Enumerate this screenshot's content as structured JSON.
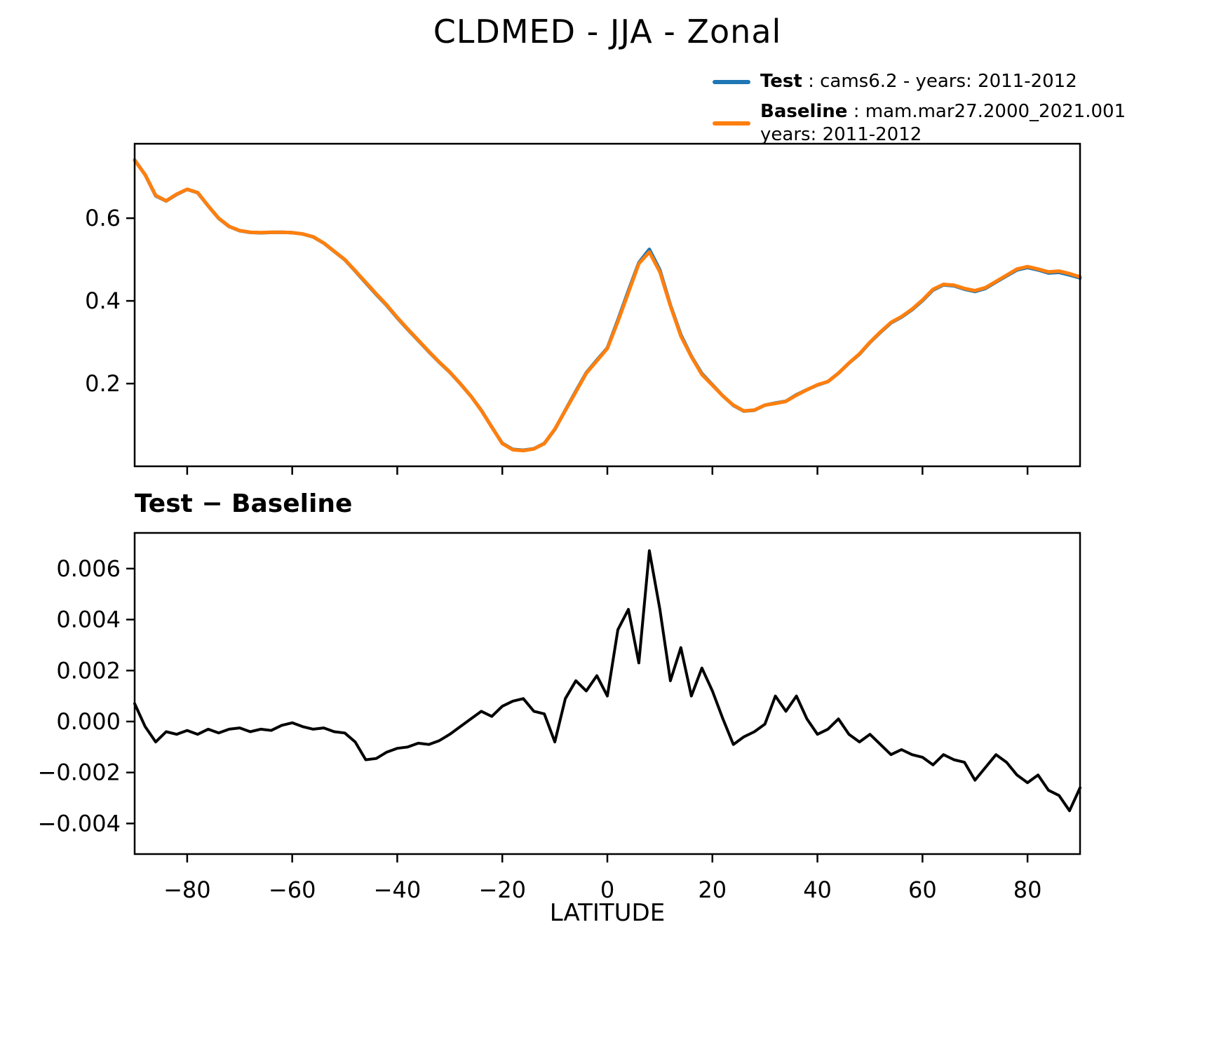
{
  "figure": {
    "title": "CLDMED - JJA - Zonal",
    "background": "#ffffff"
  },
  "legend": {
    "items": [
      {
        "name": "Test",
        "rest": " : cams6.2 - years: 2011-2012",
        "color": "#1f77b4"
      },
      {
        "name": "Baseline",
        "rest": " : mam.mar27.2000_2021.001\nyears: 2011-2012",
        "color": "#ff7f0e"
      }
    ]
  },
  "chart_data": [
    {
      "type": "line",
      "title": "CLDMED - JJA - Zonal",
      "xlabel": "",
      "ylabel": "",
      "xlim": [
        -90,
        90
      ],
      "ylim": [
        0,
        0.78
      ],
      "grid": false,
      "legend_position": "upper right outside",
      "xticks": {
        "values": [
          -80,
          -60,
          -40,
          -20,
          0,
          20,
          40,
          60,
          80
        ],
        "labels": []
      },
      "yticks": {
        "values": [
          0.2,
          0.4,
          0.6
        ],
        "labels": [
          "0.2",
          "0.4",
          "0.6"
        ]
      },
      "x": [
        -90,
        -88,
        -86,
        -84,
        -82,
        -80,
        -78,
        -76,
        -74,
        -72,
        -70,
        -68,
        -66,
        -64,
        -62,
        -60,
        -58,
        -56,
        -54,
        -52,
        -50,
        -48,
        -46,
        -44,
        -42,
        -40,
        -38,
        -36,
        -34,
        -32,
        -30,
        -28,
        -26,
        -24,
        -22,
        -20,
        -18,
        -16,
        -14,
        -12,
        -10,
        -8,
        -6,
        -4,
        -2,
        0,
        2,
        4,
        6,
        8,
        10,
        12,
        14,
        16,
        18,
        20,
        22,
        24,
        26,
        28,
        30,
        32,
        34,
        36,
        38,
        40,
        42,
        44,
        46,
        48,
        50,
        52,
        54,
        56,
        58,
        60,
        62,
        64,
        66,
        68,
        70,
        72,
        74,
        76,
        78,
        80,
        82,
        84,
        86,
        88,
        90
      ],
      "series": [
        {
          "name": "Test",
          "slug": "test",
          "color": "#1f77b4",
          "values": [
            0.7407,
            0.7048,
            0.6542,
            0.6416,
            0.6575,
            0.6697,
            0.6615,
            0.6297,
            0.5996,
            0.5797,
            0.5698,
            0.5656,
            0.5647,
            0.5657,
            0.5659,
            0.565,
            0.5618,
            0.5547,
            0.5398,
            0.5196,
            0.4996,
            0.4722,
            0.4435,
            0.4156,
            0.3888,
            0.359,
            0.331,
            0.3042,
            0.2771,
            0.2513,
            0.2275,
            0.1998,
            0.1701,
            0.1354,
            0.0952,
            0.0556,
            0.0408,
            0.0389,
            0.0424,
            0.0553,
            0.0892,
            0.1359,
            0.1816,
            0.2262,
            0.2568,
            0.286,
            0.3536,
            0.4244,
            0.4923,
            0.5247,
            0.4744,
            0.3896,
            0.3179,
            0.266,
            0.2241,
            0.1972,
            0.1701,
            0.1471,
            0.1334,
            0.1356,
            0.1479,
            0.153,
            0.1574,
            0.173,
            0.1851,
            0.1965,
            0.2047,
            0.2251,
            0.2495,
            0.2712,
            0.2995,
            0.3241,
            0.3467,
            0.3609,
            0.3787,
            0.4006,
            0.4263,
            0.4387,
            0.4365,
            0.4284,
            0.4227,
            0.4302,
            0.4457,
            0.4604,
            0.4749,
            0.4806,
            0.4749,
            0.4673,
            0.4691,
            0.4627,
            0.4554
          ]
        },
        {
          "name": "Baseline",
          "slug": "baseline",
          "color": "#ff7f0e",
          "values": [
            0.74,
            0.705,
            0.655,
            0.642,
            0.658,
            0.67,
            0.662,
            0.63,
            0.6,
            0.58,
            0.57,
            0.566,
            0.565,
            0.566,
            0.566,
            0.565,
            0.562,
            0.555,
            0.54,
            0.52,
            0.5,
            0.473,
            0.445,
            0.417,
            0.39,
            0.36,
            0.332,
            0.305,
            0.278,
            0.252,
            0.228,
            0.2,
            0.17,
            0.135,
            0.095,
            0.055,
            0.04,
            0.038,
            0.042,
            0.055,
            0.09,
            0.135,
            0.18,
            0.225,
            0.255,
            0.285,
            0.35,
            0.42,
            0.49,
            0.518,
            0.47,
            0.388,
            0.315,
            0.265,
            0.222,
            0.196,
            0.17,
            0.148,
            0.134,
            0.136,
            0.148,
            0.152,
            0.157,
            0.172,
            0.185,
            0.197,
            0.205,
            0.225,
            0.25,
            0.272,
            0.3,
            0.325,
            0.348,
            0.362,
            0.38,
            0.402,
            0.428,
            0.44,
            0.438,
            0.43,
            0.425,
            0.432,
            0.447,
            0.462,
            0.477,
            0.483,
            0.477,
            0.47,
            0.472,
            0.466,
            0.458
          ]
        }
      ]
    },
    {
      "type": "line",
      "title": "Test − Baseline",
      "xlabel": "LATITUDE",
      "ylabel": "",
      "xlim": [
        -90,
        90
      ],
      "ylim": [
        -0.0052,
        0.0074
      ],
      "grid": false,
      "xticks": {
        "values": [
          -80,
          -60,
          -40,
          -20,
          0,
          20,
          40,
          60,
          80
        ],
        "labels": [
          "−80",
          "−60",
          "−40",
          "−20",
          "0",
          "20",
          "40",
          "60",
          "80"
        ]
      },
      "yticks": {
        "values": [
          -0.004,
          -0.002,
          0,
          0.002,
          0.004,
          0.006
        ],
        "labels": [
          "−0.004",
          "−0.002",
          "0.000",
          "0.002",
          "0.004",
          "0.006"
        ]
      },
      "x": [
        -90,
        -88,
        -86,
        -84,
        -82,
        -80,
        -78,
        -76,
        -74,
        -72,
        -70,
        -68,
        -66,
        -64,
        -62,
        -60,
        -58,
        -56,
        -54,
        -52,
        -50,
        -48,
        -46,
        -44,
        -42,
        -40,
        -38,
        -36,
        -34,
        -32,
        -30,
        -28,
        -26,
        -24,
        -22,
        -20,
        -18,
        -16,
        -14,
        -12,
        -10,
        -8,
        -6,
        -4,
        -2,
        0,
        2,
        4,
        6,
        8,
        10,
        12,
        14,
        16,
        18,
        20,
        22,
        24,
        26,
        28,
        30,
        32,
        34,
        36,
        38,
        40,
        42,
        44,
        46,
        48,
        50,
        52,
        54,
        56,
        58,
        60,
        62,
        64,
        66,
        68,
        70,
        72,
        74,
        76,
        78,
        80,
        82,
        84,
        86,
        88,
        90
      ],
      "series": [
        {
          "name": "Test − Baseline",
          "slug": "diff",
          "color": "#000000",
          "values": [
            0.0007,
            -0.0002,
            -0.0008,
            -0.0004,
            -0.0005,
            -0.00035,
            -0.0005,
            -0.0003,
            -0.00045,
            -0.0003,
            -0.00025,
            -0.0004,
            -0.0003,
            -0.00035,
            -0.00015,
            -5e-05,
            -0.0002,
            -0.0003,
            -0.00025,
            -0.0004,
            -0.00045,
            -0.0008,
            -0.0015,
            -0.00145,
            -0.0012,
            -0.00105,
            -0.001,
            -0.00085,
            -0.0009,
            -0.00075,
            -0.0005,
            -0.0002,
            0.0001,
            0.0004,
            0.0002,
            0.0006,
            0.0008,
            0.0009,
            0.0004,
            0.0003,
            -0.0008,
            0.0009,
            0.0016,
            0.0012,
            0.0018,
            0.001,
            0.0036,
            0.0044,
            0.0023,
            0.0067,
            0.0044,
            0.0016,
            0.0029,
            0.001,
            0.0021,
            0.0012,
            0.0001,
            -0.0009,
            -0.0006,
            -0.0004,
            -0.0001,
            0.001,
            0.0004,
            0.001,
            0.0001,
            -0.0005,
            -0.0003,
            0.0001,
            -0.0005,
            -0.0008,
            -0.0005,
            -0.0009,
            -0.0013,
            -0.0011,
            -0.0013,
            -0.0014,
            -0.0017,
            -0.0013,
            -0.0015,
            -0.0016,
            -0.0023,
            -0.0018,
            -0.0013,
            -0.0016,
            -0.0021,
            -0.0024,
            -0.0021,
            -0.0027,
            -0.0029,
            -0.0035,
            -0.0026
          ]
        }
      ]
    }
  ]
}
